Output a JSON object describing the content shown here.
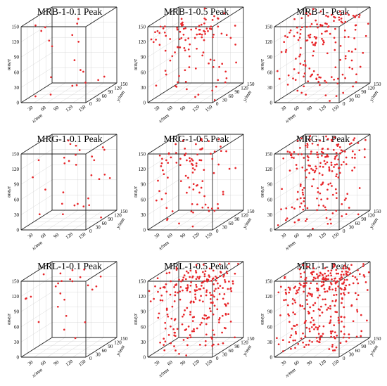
{
  "chart_data": [
    {
      "type": "scatter",
      "title": "MRB-1-0.1 Peak",
      "xlabel": "x/mm",
      "ylabel": "y/mm",
      "zlabel": "z/mm",
      "xlim": [
        0,
        150
      ],
      "ylim": [
        0,
        150
      ],
      "zlim": [
        0,
        150
      ],
      "xticks": [
        "30",
        "60",
        "90",
        "120",
        "150"
      ],
      "yticks": [
        "0",
        "30",
        "60",
        "90",
        "120",
        "150"
      ],
      "zticks": [
        "0",
        "30",
        "60",
        "90",
        "120",
        "150"
      ],
      "grid": true,
      "marker_color": "#e8262a",
      "point_count": 20,
      "seed": 11
    },
    {
      "type": "scatter",
      "title": "MRB-1-0.5 Peak",
      "xlabel": "x/mm",
      "ylabel": "y/mm",
      "zlabel": "z/mm",
      "xlim": [
        0,
        150
      ],
      "ylim": [
        0,
        150
      ],
      "zlim": [
        0,
        150
      ],
      "xticks": [
        "30",
        "60",
        "90",
        "120",
        "150"
      ],
      "yticks": [
        "0",
        "30",
        "60",
        "90",
        "120",
        "150"
      ],
      "zticks": [
        "0",
        "30",
        "60",
        "90",
        "120",
        "150"
      ],
      "grid": true,
      "marker_color": "#e8262a",
      "point_count": 110,
      "seed": 23
    },
    {
      "type": "scatter",
      "title": "MRB-1- Peak",
      "xlabel": "x/mm",
      "ylabel": "y/mm",
      "zlabel": "z/mm",
      "xlim": [
        0,
        150
      ],
      "ylim": [
        0,
        150
      ],
      "zlim": [
        0,
        150
      ],
      "xticks": [
        "30",
        "60",
        "90",
        "120",
        "150"
      ],
      "yticks": [
        "0",
        "30",
        "60",
        "90",
        "120",
        "150"
      ],
      "zticks": [
        "0",
        "30",
        "60",
        "90",
        "120",
        "150"
      ],
      "grid": true,
      "marker_color": "#e8262a",
      "point_count": 160,
      "seed": 37
    },
    {
      "type": "scatter",
      "title": "MRG-1-0.1 Peak",
      "xlabel": "x/mm",
      "ylabel": "y/mm",
      "zlabel": "z/mm",
      "xlim": [
        0,
        150
      ],
      "ylim": [
        0,
        150
      ],
      "zlim": [
        0,
        150
      ],
      "xticks": [
        "30",
        "60",
        "90",
        "120",
        "150"
      ],
      "yticks": [
        "0",
        "30",
        "60",
        "90",
        "120",
        "150"
      ],
      "zticks": [
        "0",
        "30",
        "60",
        "90",
        "120",
        "150"
      ],
      "grid": true,
      "marker_color": "#e8262a",
      "point_count": 30,
      "seed": 41
    },
    {
      "type": "scatter",
      "title": "MRG-1-0.5 Peak",
      "xlabel": "x/mm",
      "ylabel": "y/mm",
      "zlabel": "z/mm",
      "xlim": [
        0,
        150
      ],
      "ylim": [
        0,
        150
      ],
      "zlim": [
        0,
        150
      ],
      "xticks": [
        "30",
        "60",
        "90",
        "120",
        "150"
      ],
      "yticks": [
        "0",
        "30",
        "60",
        "90",
        "120",
        "150"
      ],
      "zticks": [
        "0",
        "30",
        "60",
        "90",
        "120",
        "150"
      ],
      "grid": true,
      "marker_color": "#e8262a",
      "point_count": 95,
      "seed": 53
    },
    {
      "type": "scatter",
      "title": "MRG-1- Peak",
      "xlabel": "x/mm",
      "ylabel": "y/mm",
      "zlabel": "z/mm",
      "xlim": [
        0,
        150
      ],
      "ylim": [
        0,
        150
      ],
      "zlim": [
        0,
        150
      ],
      "xticks": [
        "30",
        "60",
        "90",
        "120",
        "150"
      ],
      "yticks": [
        "0",
        "30",
        "60",
        "90",
        "120",
        "150"
      ],
      "zticks": [
        "0",
        "30",
        "60",
        "90",
        "120",
        "150"
      ],
      "grid": true,
      "marker_color": "#e8262a",
      "point_count": 190,
      "seed": 67
    },
    {
      "type": "scatter",
      "title": "MRL-1-0.1 Peak",
      "xlabel": "x/mm",
      "ylabel": "y/mm",
      "zlabel": "z/mm",
      "xlim": [
        0,
        150
      ],
      "ylim": [
        0,
        150
      ],
      "zlim": [
        0,
        150
      ],
      "xticks": [
        "30",
        "60",
        "90",
        "120",
        "150"
      ],
      "yticks": [
        "0",
        "30",
        "60",
        "90",
        "120",
        "150"
      ],
      "zticks": [
        "0",
        "30",
        "60",
        "90",
        "120",
        "150"
      ],
      "grid": true,
      "marker_color": "#e8262a",
      "point_count": 25,
      "seed": 71
    },
    {
      "type": "scatter",
      "title": "MRL-1-0.5 Peak",
      "xlabel": "x/mm",
      "ylabel": "y/mm",
      "zlabel": "z/mm",
      "xlim": [
        0,
        150
      ],
      "ylim": [
        0,
        150
      ],
      "zlim": [
        0,
        150
      ],
      "xticks": [
        "30",
        "60",
        "90",
        "120",
        "150"
      ],
      "yticks": [
        "0",
        "30",
        "60",
        "90",
        "120",
        "150"
      ],
      "zticks": [
        "0",
        "30",
        "60",
        "90",
        "120",
        "150"
      ],
      "grid": true,
      "marker_color": "#e8262a",
      "point_count": 240,
      "seed": 83
    },
    {
      "type": "scatter",
      "title": "MRL-1- Peak",
      "xlabel": "x/mm",
      "ylabel": "y/mm",
      "zlabel": "z/mm",
      "xlim": [
        0,
        150
      ],
      "ylim": [
        0,
        150
      ],
      "zlim": [
        0,
        150
      ],
      "xticks": [
        "30",
        "60",
        "90",
        "120",
        "150"
      ],
      "yticks": [
        "0",
        "30",
        "60",
        "90",
        "120",
        "150"
      ],
      "zticks": [
        "0",
        "30",
        "60",
        "90",
        "120",
        "150"
      ],
      "grid": true,
      "marker_color": "#e8262a",
      "point_count": 320,
      "seed": 97
    }
  ]
}
